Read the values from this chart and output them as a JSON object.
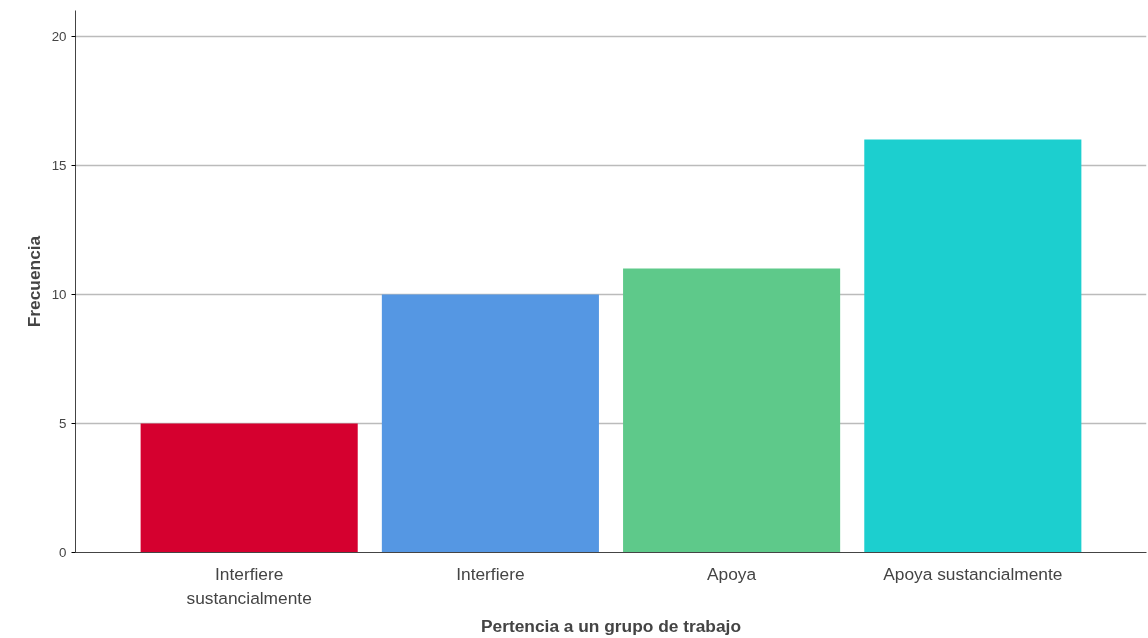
{
  "chart_data": {
    "type": "bar",
    "xlabel": "Pertencia a un grupo de trabajo",
    "ylabel": "Frecuencia",
    "categories": [
      "Interfiere sustancialmente",
      "Interfiere",
      "Apoya",
      "Apoya sustancialmente"
    ],
    "values": [
      5,
      10,
      11,
      16
    ],
    "colors": [
      "#d5002f",
      "#5597e3",
      "#5ec98a",
      "#1ccfcf"
    ],
    "ylim": [
      0,
      21
    ],
    "yticks": [
      0,
      5,
      10,
      15,
      20
    ],
    "grid": "y"
  }
}
